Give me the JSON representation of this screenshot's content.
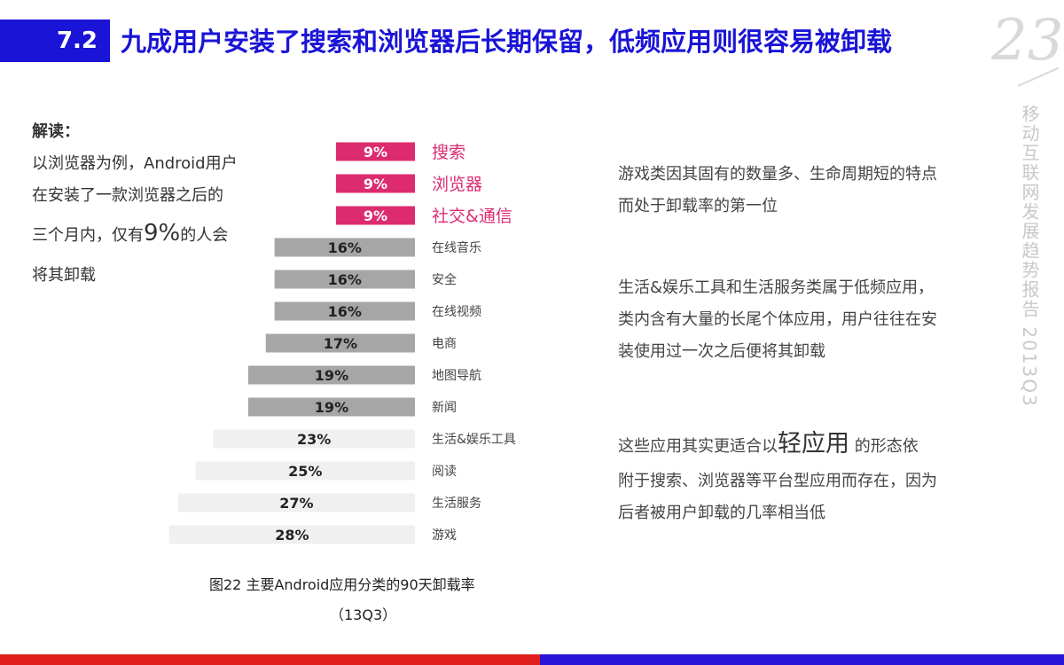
{
  "header": {
    "section_number": "7.2",
    "title": "九成用户安装了搜索和浏览器后长期保留，低频应用则很容易被卸载",
    "page_number": "23",
    "side_title": "移动互联网发展趋势报告 2013Q3"
  },
  "interpretation": {
    "label": "解读：",
    "line1": "以浏览器为例，Android用户",
    "line2": "在安装了一款浏览器之后的",
    "line3_pre": "三个月内，仅有",
    "line3_big": "9%",
    "line3_post": "的人会",
    "line4": "将其卸载"
  },
  "chart_data": {
    "type": "bar",
    "orientation": "horizontal",
    "title": "图22 主要Android应用分类的90天卸载率",
    "subtitle": "（13Q3）",
    "categories": [
      "搜索",
      "浏览器",
      "社交&通信",
      "在线音乐",
      "安全",
      "在线视频",
      "电商",
      "地图导航",
      "新闻",
      "生活&娱乐工具",
      "阅读",
      "生活服务",
      "游戏"
    ],
    "values": [
      9,
      9,
      9,
      16,
      16,
      16,
      17,
      19,
      19,
      23,
      25,
      27,
      28
    ],
    "value_labels": [
      "9%",
      "9%",
      "9%",
      "16%",
      "16%",
      "16%",
      "17%",
      "19%",
      "19%",
      "23%",
      "25%",
      "27%",
      "28%"
    ],
    "unit": "%",
    "colors": {
      "highlight": "#dc2b6f",
      "medium": "#a6a6a6",
      "light": "#f0f0f0",
      "highlight_text": "#ffffff",
      "dark_text": "#222222",
      "highlight_label": "#dc2b6f",
      "normal_label": "#444444"
    },
    "group_of_each_bar": [
      "highlight",
      "highlight",
      "highlight",
      "medium",
      "medium",
      "medium",
      "medium",
      "medium",
      "medium",
      "light",
      "light",
      "light",
      "light"
    ]
  },
  "right_text": {
    "p1_line1": "游戏类因其固有的数量多、生命周期短的特点",
    "p1_line2": "而处于卸载率的第一位",
    "p2_line1": "生活&娱乐工具和生活服务类属于低频应用，",
    "p2_line2": "类内含有大量的长尾个体应用，用户往往在安",
    "p2_line3": "装使用过一次之后便将其卸载",
    "p3_pre": "这些应用其实更适合以",
    "p3_big": "轻应用",
    "p3_post": " 的形态依",
    "p3_line2": "附于搜索、浏览器等平台型应用而存在，因为",
    "p3_line3": "后者被用户卸载的几率相当低"
  },
  "colors": {
    "brand_blue": "#1a14d6",
    "footer_red": "#e01e1e",
    "footer_blue": "#2a14d6"
  }
}
